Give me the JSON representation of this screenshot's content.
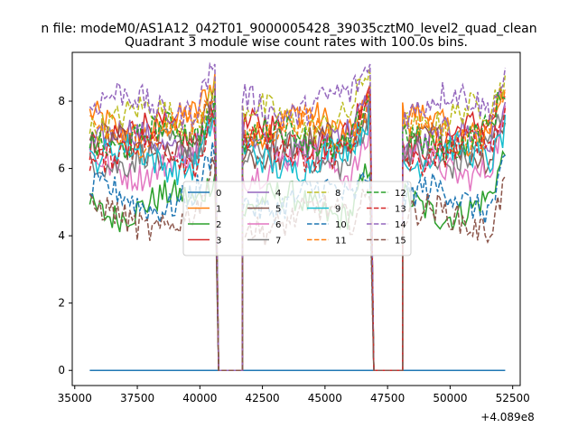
{
  "suptitle": "n file: modeM0/AS1A12_042T01_9000005428_39035cztM0_level2_quad_clean",
  "chart_data": {
    "type": "line",
    "title": "Quadrant 3 module wise count rates with 100.0s bins.",
    "xlabel": "",
    "ylabel": "",
    "x_offset_label": "+4.089e8",
    "xlim": [
      34900,
      52800
    ],
    "ylim": [
      -0.45,
      9.45
    ],
    "x_ticks": [
      35000,
      37500,
      40000,
      42500,
      45000,
      47500,
      50000,
      52500
    ],
    "y_ticks": [
      0,
      2,
      4,
      6,
      8
    ],
    "grid": false,
    "legend": {
      "placement": "center",
      "ncol": 4
    },
    "segments": [
      [
        35600,
        40600
      ],
      [
        41700,
        46800
      ],
      [
        48100,
        52200
      ]
    ],
    "series": [
      {
        "name": "0",
        "color": "#1f77b4",
        "dash": "solid",
        "level": 0.0,
        "flat": true
      },
      {
        "name": "1",
        "color": "#ff7f0e",
        "dash": "solid",
        "level": 7.3
      },
      {
        "name": "2",
        "color": "#2ca02c",
        "dash": "solid",
        "level": 4.9
      },
      {
        "name": "3",
        "color": "#d62728",
        "dash": "solid",
        "level": 7.0
      },
      {
        "name": "4",
        "color": "#9467bd",
        "dash": "solid",
        "level": 6.8
      },
      {
        "name": "5",
        "color": "#8c564b",
        "dash": "solid",
        "level": 6.6
      },
      {
        "name": "6",
        "color": "#e377c2",
        "dash": "solid",
        "level": 6.1
      },
      {
        "name": "7",
        "color": "#7f7f7f",
        "dash": "solid",
        "level": 6.4
      },
      {
        "name": "8",
        "color": "#bcbd22",
        "dash": "dashed",
        "level": 7.5
      },
      {
        "name": "9",
        "color": "#17becf",
        "dash": "solid",
        "level": 6.3
      },
      {
        "name": "10",
        "color": "#1f77b4",
        "dash": "dashed",
        "level": 5.1
      },
      {
        "name": "11",
        "color": "#ff7f0e",
        "dash": "dashed",
        "level": 7.1
      },
      {
        "name": "12",
        "color": "#2ca02c",
        "dash": "dashed",
        "level": 6.9
      },
      {
        "name": "13",
        "color": "#d62728",
        "dash": "dashed",
        "level": 6.5
      },
      {
        "name": "14",
        "color": "#9467bd",
        "dash": "dashed",
        "level": 7.9
      },
      {
        "name": "15",
        "color": "#8c564b",
        "dash": "dashed",
        "level": 4.5
      }
    ]
  }
}
